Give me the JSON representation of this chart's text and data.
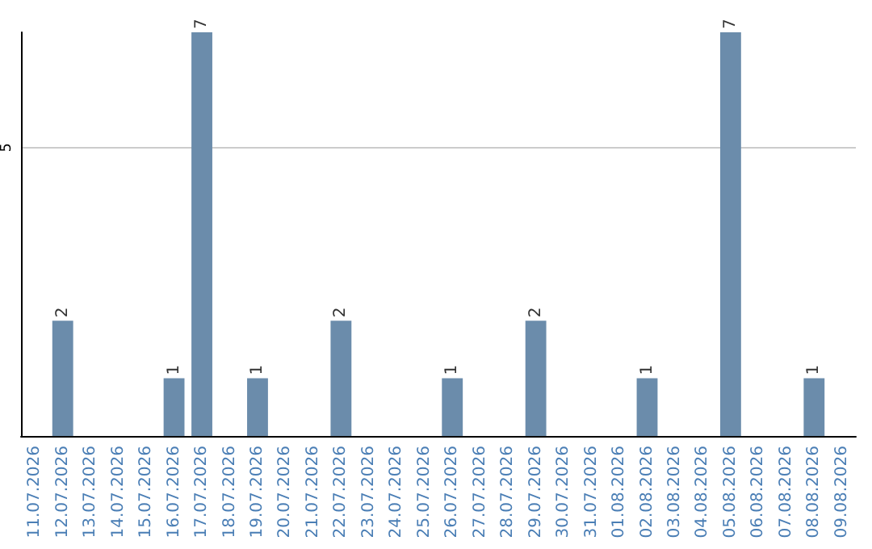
{
  "chart_data": {
    "type": "bar",
    "categories": [
      "11.07.2026",
      "12.07.2026",
      "13.07.2026",
      "14.07.2026",
      "15.07.2026",
      "16.07.2026",
      "17.07.2026",
      "18.07.2026",
      "19.07.2026",
      "20.07.2026",
      "21.07.2026",
      "22.07.2026",
      "23.07.2026",
      "24.07.2026",
      "25.07.2026",
      "26.07.2026",
      "27.07.2026",
      "28.07.2026",
      "29.07.2026",
      "30.07.2026",
      "31.07.2026",
      "01.08.2026",
      "02.08.2026",
      "03.08.2026",
      "04.08.2026",
      "05.08.2026",
      "06.08.2026",
      "07.08.2026",
      "08.08.2026",
      "09.08.2026"
    ],
    "values": [
      null,
      2,
      null,
      null,
      null,
      1,
      7,
      null,
      1,
      null,
      null,
      2,
      null,
      null,
      null,
      1,
      null,
      null,
      2,
      null,
      null,
      null,
      1,
      null,
      null,
      7,
      null,
      null,
      1,
      null
    ],
    "color": "#6b8cab",
    "ylim": [
      0,
      7
    ],
    "yticks": [
      5
    ],
    "grid": "y",
    "data_labels": true
  }
}
